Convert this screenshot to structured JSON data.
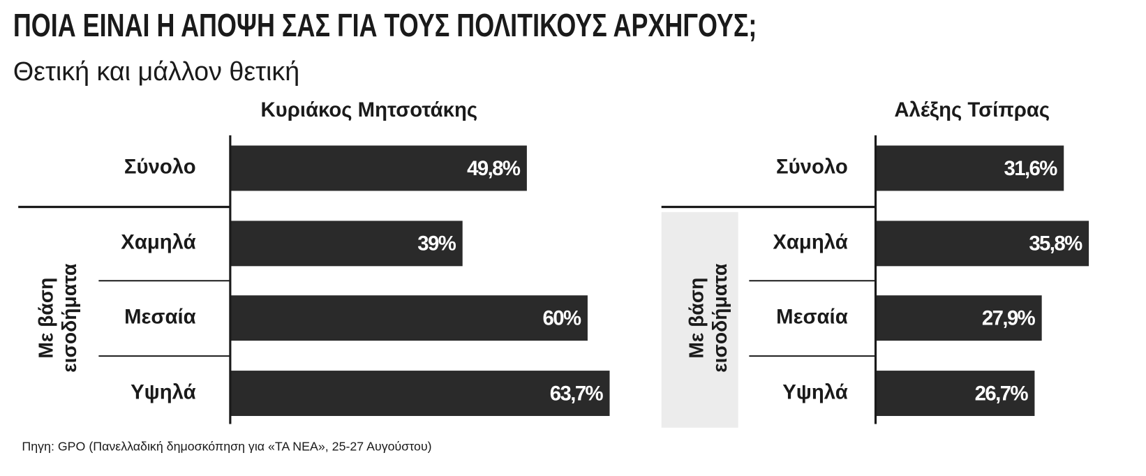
{
  "title": "ΠΟΙΑ ΕΙΝΑΙ Η ΑΠΟΨΗ ΣΑΣ ΓΙΑ ΤΟΥΣ ΠΟΛΙΤΙΚΟΥΣ ΑΡΧΗΓΟΥΣ;",
  "subtitle": "Θετική και μάλλον θετική",
  "source": "Πηγη: GPO (Πανελλαδική δημοσκόπηση για «ΤΑ ΝΕΑ», 25-27 Αυγούστου)",
  "chart_data": [
    {
      "type": "bar",
      "title": "Κυριάκος Μητσοτάκης",
      "group_label": [
        "Με βάση",
        "εισοδήματα"
      ],
      "categories": [
        "Σύνολο",
        "Χαμηλά",
        "Μεσαία",
        "Υψηλά"
      ],
      "values": [
        49.8,
        39,
        60,
        63.7
      ],
      "value_labels": [
        "49,8%",
        "39%",
        "60%",
        "63,7%"
      ],
      "color": "#2a2a2a"
    },
    {
      "type": "bar",
      "title": "Αλέξης Τσίπρας",
      "group_label": [
        "Με βάση",
        "εισοδήματα"
      ],
      "categories": [
        "Σύνολο",
        "Χαμηλά",
        "Μεσαία",
        "Υψηλά"
      ],
      "values": [
        31.6,
        35.8,
        27.9,
        26.7
      ],
      "value_labels": [
        "31,6%",
        "35,8%",
        "27,9%",
        "26,7%"
      ],
      "color": "#2a2a2a"
    }
  ]
}
